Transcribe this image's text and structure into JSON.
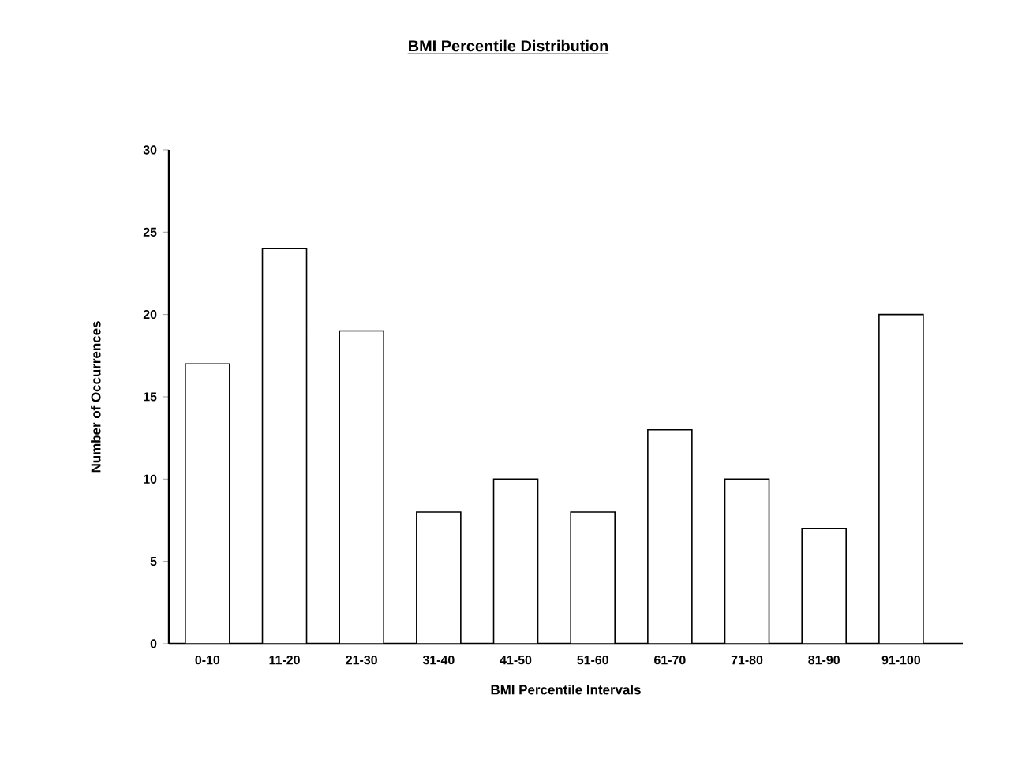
{
  "chart_data": {
    "type": "bar",
    "title": "BMI Percentile Distribution",
    "xlabel": "BMI Percentile Intervals",
    "ylabel": "Number of Occurrences",
    "categories": [
      "0-10",
      "11-20",
      "21-30",
      "31-40",
      "41-50",
      "51-60",
      "61-70",
      "71-80",
      "81-90",
      "91-100"
    ],
    "values": [
      17,
      24,
      19,
      8,
      10,
      8,
      13,
      10,
      7,
      20
    ],
    "color": "#ffffff",
    "ylim": [
      0,
      30
    ],
    "yticks": [
      0,
      5,
      10,
      15,
      20,
      25,
      30
    ]
  }
}
